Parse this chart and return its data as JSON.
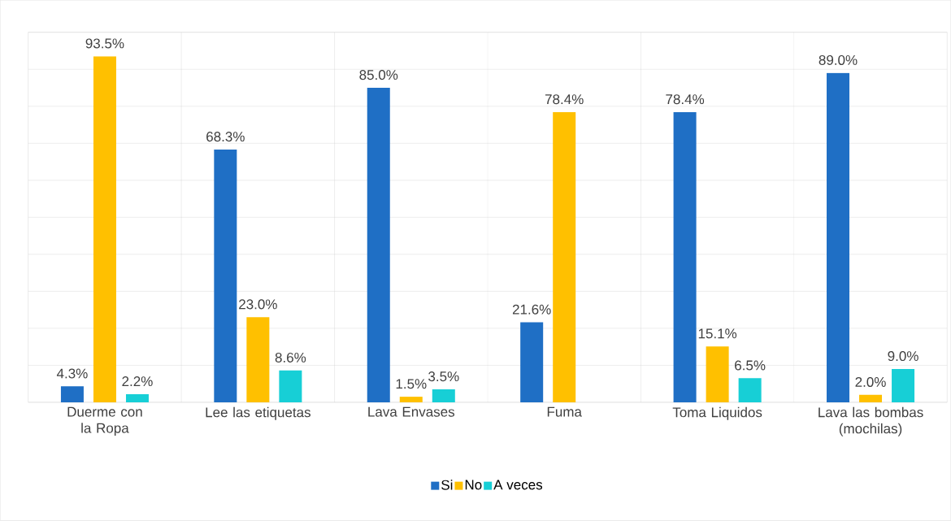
{
  "chart_data": {
    "type": "bar",
    "categories": [
      "Duerme con la Ropa",
      "Lee las etiquetas",
      "Lava Envases",
      "Fuma",
      "Toma Liquidos",
      "Lava las bombas (mochilas)"
    ],
    "series": [
      {
        "name": "Si",
        "color": "#1f6fc5",
        "values": [
          4.3,
          68.3,
          85.0,
          21.6,
          78.4,
          89.0
        ],
        "value_labels": [
          "4.3%",
          "68.3%",
          "85.0%",
          "21.6%",
          "78.4%",
          "89.0%"
        ]
      },
      {
        "name": "No",
        "color": "#ffc000",
        "values": [
          93.5,
          23.0,
          1.5,
          78.4,
          15.1,
          2.0
        ],
        "value_labels": [
          "93.5%",
          "23.0%",
          "1.5%",
          "78.4%",
          "15.1%",
          "2.0%"
        ]
      },
      {
        "name": "A veces",
        "color": "#17cfd6",
        "values": [
          2.2,
          8.6,
          3.5,
          null,
          6.5,
          9.0
        ],
        "value_labels": [
          "2.2%",
          "8.6%",
          "3.5%",
          null,
          "6.5%",
          "9.0%"
        ]
      }
    ],
    "ylim": [
      0,
      100
    ],
    "yticks": [
      {
        "value": 0,
        "label": null
      },
      {
        "value": 10,
        "label": null
      },
      {
        "value": 20,
        "label": null
      },
      {
        "value": 30,
        "label": null
      },
      {
        "value": 40,
        "label": null
      },
      {
        "value": 50,
        "label": null
      },
      {
        "value": 60,
        "label": null
      },
      {
        "value": 70,
        "label": null
      },
      {
        "value": 80,
        "label": null
      },
      {
        "value": 90,
        "label": null
      },
      {
        "value": 100,
        "label": null
      }
    ],
    "grid": "y",
    "legend": "bottom",
    "tick_labels": "x"
  }
}
